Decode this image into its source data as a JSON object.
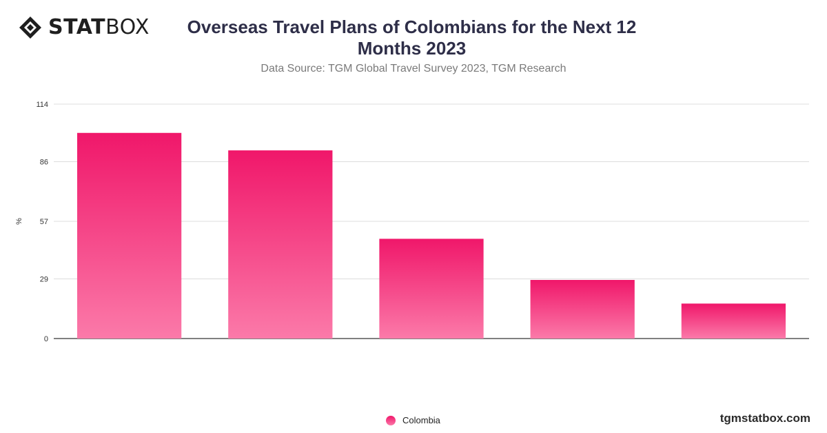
{
  "brand": {
    "logo_bold": "STAT",
    "logo_light": "BOX",
    "watermark": "tgmstatbox.com"
  },
  "title": "Overseas Travel Plans of Colombians for the Next 12 Months 2023",
  "subtitle": "Data Source: TGM Global Travel Survey 2023, TGM Research",
  "colors": {
    "bar_top": "#f0176a",
    "bar_bottom": "#fb7aa9",
    "title": "#2e2e48",
    "grid": "#dcdcdc",
    "axis": "#333333"
  },
  "chart_data": {
    "type": "bar",
    "title": "Overseas Travel Plans of Colombians for the Next 12 Months 2023",
    "subtitle": "Data Source: TGM Global Travel Survey 2023, TGM Research",
    "xlabel": "",
    "ylabel": "%",
    "ylim": [
      0,
      114
    ],
    "yticks": [
      0,
      29,
      57,
      86,
      114
    ],
    "categories": [
      "",
      "",
      "",
      "",
      ""
    ],
    "series": [
      {
        "name": "Colombia",
        "values": [
          100,
          91.5,
          48.5,
          28.5,
          17
        ]
      }
    ],
    "grid": true,
    "legend": "bottom-center"
  }
}
